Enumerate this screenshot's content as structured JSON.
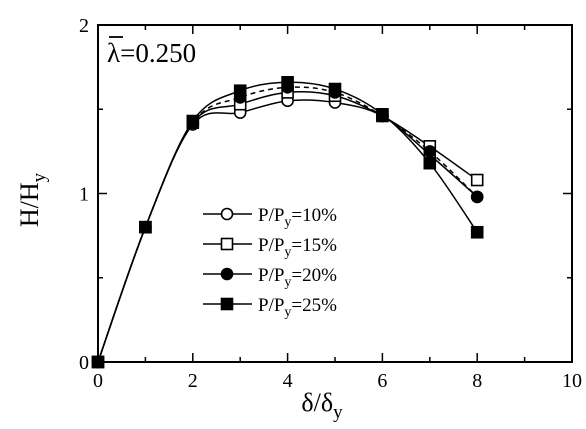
{
  "chart_data": {
    "type": "line",
    "annotation": {
      "lambda_symbol": "λ",
      "value_text": "=0.250"
    },
    "xlabel": {
      "main": "δ/δ",
      "sub": "y"
    },
    "ylabel": {
      "main": "H/H",
      "sub": "y"
    },
    "xlim": [
      0,
      10
    ],
    "ylim": [
      0,
      2
    ],
    "xticks": [
      0,
      2,
      4,
      6,
      8,
      10
    ],
    "yticks": [
      0,
      1,
      2
    ],
    "grid": false,
    "legend_position": "center-left",
    "series": [
      {
        "name_main": "P/P",
        "name_sub": "y",
        "name_rest": "=10%",
        "marker": "circle-open",
        "x": [
          0,
          1,
          2,
          3,
          4,
          5,
          6,
          7,
          8
        ],
        "y": [
          0,
          0.8,
          1.41,
          1.48,
          1.55,
          1.54,
          1.46,
          1.23,
          0.98
        ]
      },
      {
        "name_main": "P/P",
        "name_sub": "y",
        "name_rest": "=15%",
        "marker": "square-open",
        "x": [
          0,
          1,
          2,
          3,
          4,
          5,
          6,
          7,
          8
        ],
        "y": [
          0,
          0.8,
          1.42,
          1.53,
          1.6,
          1.58,
          1.46,
          1.28,
          1.08
        ]
      },
      {
        "name_main": "P/P",
        "name_sub": "y",
        "name_rest": "=20%",
        "marker": "circle-filled",
        "x": [
          0,
          1,
          2,
          3,
          4,
          5,
          6,
          7,
          8
        ],
        "y": [
          0,
          0.8,
          1.42,
          1.57,
          1.63,
          1.6,
          1.46,
          1.25,
          0.98
        ]
      },
      {
        "name_main": "P/P",
        "name_sub": "y",
        "name_rest": "=25%",
        "marker": "square-filled",
        "x": [
          0,
          1,
          2,
          3,
          4,
          5,
          6,
          7,
          8
        ],
        "y": [
          0,
          0.8,
          1.43,
          1.61,
          1.66,
          1.62,
          1.47,
          1.18,
          0.77
        ]
      }
    ]
  }
}
